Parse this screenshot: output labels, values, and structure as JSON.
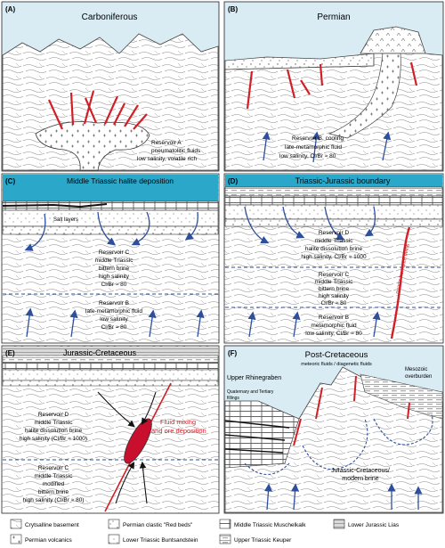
{
  "panels": {
    "A": {
      "tag": "(A)",
      "title": "Carboniferous",
      "reservoir": [
        "Reservoir A",
        "pneumatolitic fluids",
        "low salinity, volatile rich"
      ]
    },
    "B": {
      "tag": "(B)",
      "title": "Permian",
      "reservoir": [
        "Reservoir B, cooling",
        "late-metamorphic fluid",
        "low salinity, Cl/Br ≈ 80"
      ]
    },
    "C": {
      "tag": "(C)",
      "title": "Middle Triassic halite deposition",
      "salt": "Salt layers",
      "resC": [
        "Reservoir C",
        "middle Triassic",
        "bittern brine",
        "high salinity",
        "Cl/Br ≈ 80"
      ],
      "resB": [
        "Reservoir B",
        "late-metamorphic fluid",
        "low salinity",
        "Cl/Br ≈ 80"
      ]
    },
    "D": {
      "tag": "(D)",
      "title": "Triassic-Jurassic boundary",
      "resD": [
        "Reservoir D",
        "middle Triassic",
        "halite dissolution brine",
        "high salinity, Cl/Br ≈ 1000"
      ],
      "resC": [
        "Reservoir C",
        "middle Triassic",
        "bittern brine",
        "high salinity",
        "Cl/Br ≈ 80"
      ],
      "resB": [
        "Reservoir B",
        "metamorphic fluid",
        "low salinity, Cl/Br ≈ 80"
      ],
      "veins": "quartz-hematite veins"
    },
    "E": {
      "tag": "(E)",
      "title": "Jurassic-Cretaceous",
      "resD": [
        "Reservoir D",
        "middle Triassic",
        "halite dissolution brine",
        "high salinity (Cl/Br ≈ 1000)"
      ],
      "resC": [
        "Reservoir C",
        "middle Triassic",
        "modified",
        "bittern brine",
        "high salinity (Cl/Br ≈ 80)"
      ],
      "mixing": [
        "Fluid mixing",
        "and ore deposition"
      ]
    },
    "F": {
      "tag": "(F)",
      "title": "Post-Cretaceous",
      "subtitle": "meteoric fluids / diagenetic fluids",
      "graben": "Upper Rhinegraben",
      "fillings": [
        "Quaternary and Tertiary",
        "fillings"
      ],
      "overburden": [
        "Mesozoic",
        "overburden"
      ],
      "brine": [
        "Jurassic-Cretaceous/",
        "modern brine"
      ]
    }
  },
  "legend": {
    "basement": "Crytsalline basement",
    "redbeds": "Permian clastic \"Red beds\"",
    "muschelkalk": "Middle Triassic Muschelkalk",
    "lias": "Lower Jurassic Lias",
    "volcanics": "Permian volcanics",
    "buntsandstein": "Lower Triassic Buntsandstein",
    "keuper": "Upper Triassic Keuper"
  },
  "colors": {
    "sky": "#d9ebf3",
    "halite": "#2aa7c9",
    "vein_red": "#d21f26",
    "arrow_blue": "#2e4f9e",
    "ore_red": "#c8102e",
    "mixing_text": "#d21f26"
  }
}
